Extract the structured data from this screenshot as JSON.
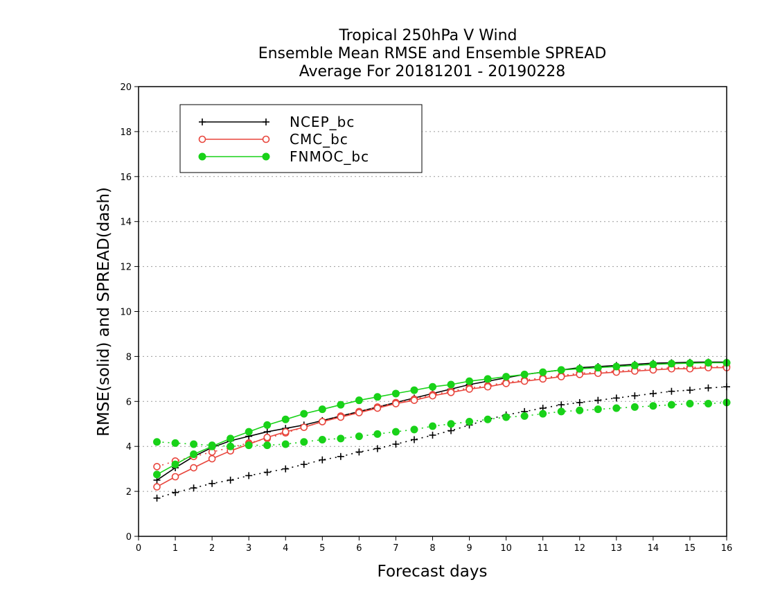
{
  "chart_data": {
    "type": "line",
    "title_lines": [
      "Tropical 250hPa V Wind",
      "Ensemble Mean RMSE and Ensemble SPREAD",
      "Average For 20181201 - 20190228"
    ],
    "xlabel": "Forecast days",
    "ylabel": "RMSE(solid) and SPREAD(dash)",
    "xlim": [
      0,
      16
    ],
    "ylim": [
      0,
      20
    ],
    "xticks": [
      0,
      1,
      2,
      3,
      4,
      5,
      6,
      7,
      8,
      9,
      10,
      11,
      12,
      13,
      14,
      15,
      16
    ],
    "yticks": [
      0,
      2,
      4,
      6,
      8,
      10,
      12,
      14,
      16,
      18,
      20
    ],
    "grid": "horizontal dotted",
    "legend_position": "top-left",
    "x": [
      0.5,
      1.0,
      1.5,
      2.0,
      2.5,
      3.0,
      3.5,
      4.0,
      4.5,
      5.0,
      5.5,
      6.0,
      6.5,
      7.0,
      7.5,
      8.0,
      8.5,
      9.0,
      9.5,
      10.0,
      10.5,
      11.0,
      11.5,
      12.0,
      12.5,
      13.0,
      13.5,
      14.0,
      14.5,
      15.0,
      15.5,
      16.0
    ],
    "series": [
      {
        "name": "NCEP_bc",
        "color": "#000000",
        "marker": "plus",
        "rmse": [
          2.5,
          3.05,
          3.55,
          3.95,
          4.25,
          4.45,
          4.65,
          4.8,
          4.95,
          5.15,
          5.35,
          5.55,
          5.75,
          5.95,
          6.15,
          6.35,
          6.55,
          6.75,
          6.9,
          7.05,
          7.2,
          7.3,
          7.4,
          7.5,
          7.55,
          7.6,
          7.65,
          7.7,
          7.72,
          7.74,
          7.75,
          7.75
        ],
        "spread": [
          1.7,
          1.95,
          2.15,
          2.35,
          2.5,
          2.7,
          2.85,
          3.0,
          3.2,
          3.4,
          3.55,
          3.75,
          3.9,
          4.1,
          4.3,
          4.5,
          4.7,
          4.95,
          5.2,
          5.4,
          5.55,
          5.7,
          5.85,
          5.95,
          6.05,
          6.15,
          6.25,
          6.35,
          6.45,
          6.5,
          6.6,
          6.65
        ]
      },
      {
        "name": "CMC_bc",
        "color": "#e8453c",
        "marker": "open-circle",
        "rmse": [
          2.2,
          2.65,
          3.05,
          3.45,
          3.8,
          4.1,
          4.4,
          4.65,
          4.85,
          5.1,
          5.3,
          5.5,
          5.7,
          5.9,
          6.05,
          6.25,
          6.4,
          6.55,
          6.65,
          6.8,
          6.9,
          7.0,
          7.1,
          7.2,
          7.25,
          7.3,
          7.35,
          7.4,
          7.45,
          7.45,
          7.5,
          7.5
        ],
        "spread": [
          3.1,
          3.35,
          3.55,
          3.75,
          3.95,
          4.15,
          4.35,
          4.6,
          4.85,
          5.1,
          5.35,
          5.55,
          5.75,
          5.95,
          6.1,
          6.3,
          6.45,
          6.6,
          6.7,
          6.85,
          6.95,
          7.05,
          7.15,
          7.25,
          7.3,
          7.35,
          7.4,
          7.45,
          7.5,
          7.5,
          7.55,
          7.55
        ]
      },
      {
        "name": "FNMOC_bc",
        "color": "#19d219",
        "marker": "filled-circle",
        "rmse": [
          2.75,
          3.2,
          3.65,
          4.0,
          4.35,
          4.65,
          4.95,
          5.2,
          5.45,
          5.65,
          5.85,
          6.05,
          6.2,
          6.35,
          6.5,
          6.65,
          6.75,
          6.9,
          7.0,
          7.1,
          7.2,
          7.3,
          7.4,
          7.45,
          7.5,
          7.55,
          7.6,
          7.65,
          7.68,
          7.7,
          7.72,
          7.72
        ],
        "spread": [
          4.2,
          4.15,
          4.1,
          4.05,
          4.0,
          4.05,
          4.05,
          4.1,
          4.2,
          4.3,
          4.35,
          4.45,
          4.55,
          4.65,
          4.75,
          4.9,
          5.0,
          5.1,
          5.2,
          5.3,
          5.35,
          5.45,
          5.55,
          5.6,
          5.65,
          5.7,
          5.75,
          5.8,
          5.85,
          5.9,
          5.9,
          5.95
        ]
      }
    ]
  }
}
